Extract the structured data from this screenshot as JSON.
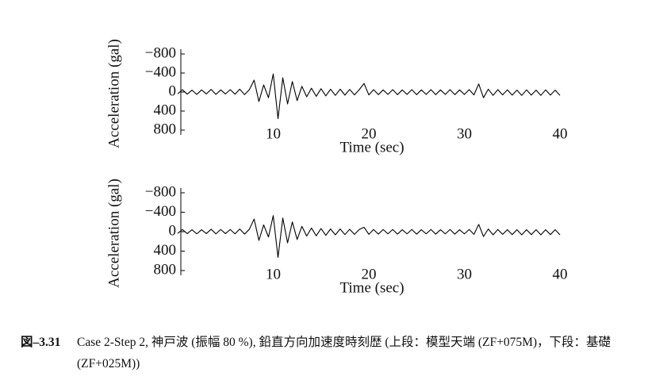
{
  "chart_data": [
    {
      "type": "line",
      "xlabel": "Time (sec)",
      "ylabel": "Acceleration (gal)",
      "xlim": [
        0,
        40
      ],
      "xticks": [
        10,
        20,
        30,
        40
      ],
      "ylim": [
        800,
        -800
      ],
      "yticks": [
        {
          "value": -800,
          "label": "−800"
        },
        {
          "value": -400,
          "label": "−400"
        },
        0,
        400,
        800
      ],
      "x": [
        0,
        0.5,
        1,
        1.5,
        2,
        2.5,
        3,
        3.5,
        4,
        4.5,
        5,
        5.5,
        6,
        6.5,
        7,
        7.5,
        8,
        8.5,
        9,
        9.5,
        10,
        10.5,
        11,
        11.5,
        12,
        12.5,
        13,
        13.5,
        14,
        14.5,
        15,
        15.5,
        16,
        16.5,
        17,
        17.5,
        18,
        18.5,
        19,
        19.5,
        20,
        20.5,
        21,
        21.5,
        22,
        22.5,
        23,
        23.5,
        24,
        24.5,
        25,
        25.5,
        26,
        26.5,
        27,
        27.5,
        28,
        28.5,
        29,
        29.5,
        30,
        30.5,
        31,
        31.5,
        32,
        32.5,
        33,
        33.5,
        34,
        34.5,
        35,
        35.5,
        36,
        36.5,
        37,
        37.5,
        38,
        38.5,
        39,
        39.5,
        40
      ],
      "series": [
        {
          "color": "#000000",
          "values": [
            40,
            -50,
            45,
            -40,
            50,
            -45,
            40,
            -55,
            50,
            -45,
            40,
            -50,
            45,
            -60,
            55,
            -50,
            -250,
            200,
            -150,
            120,
            -380,
            560,
            -300,
            250,
            -220,
            180,
            -120,
            100,
            -80,
            90,
            -70,
            80,
            -60,
            70,
            -60,
            65,
            -55,
            60,
            -50,
            -180,
            60,
            -50,
            55,
            -45,
            50,
            -50,
            55,
            -45,
            50,
            -50,
            55,
            -45,
            50,
            -50,
            55,
            -45,
            50,
            -50,
            55,
            -45,
            50,
            -50,
            60,
            -170,
            120,
            -60,
            70,
            -50,
            60,
            -45,
            65,
            -40,
            70,
            -45,
            65,
            -40,
            70,
            -45,
            65,
            -40,
            70
          ]
        }
      ]
    },
    {
      "type": "line",
      "xlabel": "Time (sec)",
      "ylabel": "Acceleration (gal)",
      "xlim": [
        0,
        40
      ],
      "xticks": [
        10,
        20,
        30,
        40
      ],
      "ylim": [
        800,
        -800
      ],
      "yticks": [
        {
          "value": -800,
          "label": "−800"
        },
        {
          "value": -400,
          "label": "−400"
        },
        0,
        400,
        800
      ],
      "x": [
        0,
        0.5,
        1,
        1.5,
        2,
        2.5,
        3,
        3.5,
        4,
        4.5,
        5,
        5.5,
        6,
        6.5,
        7,
        7.5,
        8,
        8.5,
        9,
        9.5,
        10,
        10.5,
        11,
        11.5,
        12,
        12.5,
        13,
        13.5,
        14,
        14.5,
        15,
        15.5,
        16,
        16.5,
        17,
        17.5,
        18,
        18.5,
        19,
        19.5,
        20,
        20.5,
        21,
        21.5,
        22,
        22.5,
        23,
        23.5,
        24,
        24.5,
        25,
        25.5,
        26,
        26.5,
        27,
        27.5,
        28,
        28.5,
        29,
        29.5,
        30,
        30.5,
        31,
        31.5,
        32,
        32.5,
        33,
        33.5,
        34,
        34.5,
        35,
        35.5,
        36,
        36.5,
        37,
        37.5,
        38,
        38.5,
        39,
        39.5,
        40
      ],
      "series": [
        {
          "color": "#000000",
          "values": [
            35,
            -45,
            40,
            -40,
            45,
            -40,
            40,
            -50,
            45,
            -45,
            40,
            -45,
            45,
            -55,
            50,
            -50,
            -260,
            180,
            -140,
            110,
            -330,
            530,
            -280,
            230,
            -200,
            160,
            -110,
            90,
            -75,
            85,
            -65,
            75,
            -55,
            65,
            -55,
            60,
            -50,
            55,
            -45,
            -90,
            55,
            -45,
            50,
            -45,
            45,
            -45,
            50,
            -40,
            45,
            -45,
            50,
            -40,
            45,
            -45,
            50,
            -40,
            45,
            -45,
            50,
            -40,
            45,
            -45,
            55,
            -150,
            100,
            -55,
            65,
            -45,
            55,
            -40,
            60,
            -40,
            65,
            -40,
            60,
            -40,
            65,
            -40,
            60,
            -40,
            65
          ]
        }
      ]
    }
  ],
  "caption": {
    "label": "図–3.31",
    "text": "Case 2-Step 2, 神戸波 (振幅 80 %), 鉛直方向加速度時刻歴 (上段：模型天端 (ZF+075M)，下段：基礎 (ZF+025M))"
  }
}
